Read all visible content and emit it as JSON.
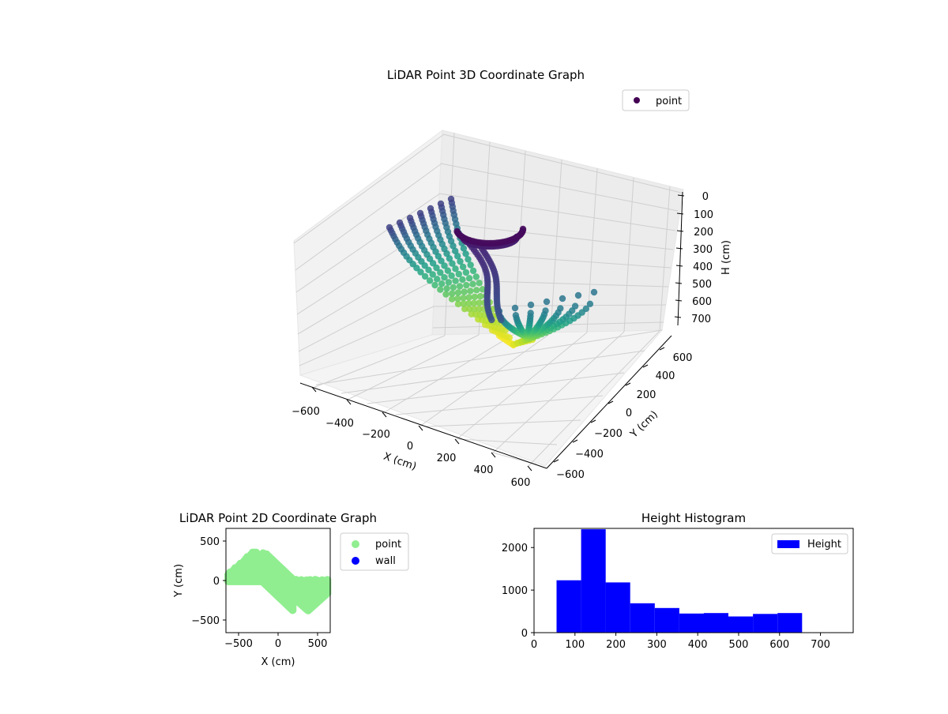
{
  "figure": {
    "background": "#ffffff"
  },
  "chart_data": [
    {
      "type": "scatter",
      "projection": "3d",
      "title": "LiDAR Point 3D Coordinate Graph",
      "xlabel": "X (cm)",
      "ylabel": "Y (cm)",
      "zlabel": "H (cm)",
      "xlim": [
        -650,
        650
      ],
      "ylim": [
        -650,
        650
      ],
      "zlim": [
        0,
        760
      ],
      "z_inverted": true,
      "xticks": [
        "−600",
        "−400",
        "−200",
        "0",
        "200",
        "400",
        "600"
      ],
      "yticks": [
        "−600",
        "−400",
        "−200",
        "0",
        "200",
        "400",
        "600"
      ],
      "zticks": [
        "0",
        "100",
        "200",
        "300",
        "400",
        "500",
        "600",
        "700"
      ],
      "colormap": "viridis",
      "grid": true,
      "legend": {
        "location": "upper-right",
        "entries": [
          {
            "label": "point",
            "color": "#440154"
          }
        ]
      }
    },
    {
      "type": "scatter",
      "title": "LiDAR Point 2D Coordinate Graph",
      "xlabel": "X (cm)",
      "ylabel": "Y (cm)",
      "xlim": [
        -660,
        660
      ],
      "ylim": [
        -660,
        660
      ],
      "xticks": [
        "−500",
        "0",
        "500"
      ],
      "yticks": [
        "−500",
        "0",
        "500"
      ],
      "series": [
        {
          "name": "point",
          "color": "#90ee90"
        },
        {
          "name": "wall",
          "color": "#0000ff"
        }
      ],
      "legend": {
        "location": "outside-upper-right"
      }
    },
    {
      "type": "bar",
      "title": "Height Histogram",
      "xlim": [
        0,
        780
      ],
      "ylim": [
        0,
        2450
      ],
      "xticks": [
        "0",
        "100",
        "200",
        "300",
        "400",
        "500",
        "600",
        "700"
      ],
      "yticks": [
        "0",
        "1000",
        "2000"
      ],
      "bins": [
        {
          "x0": 55,
          "x1": 115,
          "count": 1230
        },
        {
          "x0": 115,
          "x1": 175,
          "count": 2430
        },
        {
          "x0": 175,
          "x1": 235,
          "count": 1180
        },
        {
          "x0": 235,
          "x1": 295,
          "count": 690
        },
        {
          "x0": 295,
          "x1": 355,
          "count": 580
        },
        {
          "x0": 355,
          "x1": 415,
          "count": 450
        },
        {
          "x0": 415,
          "x1": 475,
          "count": 460
        },
        {
          "x0": 475,
          "x1": 535,
          "count": 380
        },
        {
          "x0": 535,
          "x1": 595,
          "count": 440
        },
        {
          "x0": 595,
          "x1": 655,
          "count": 460
        }
      ],
      "bar_color": "#0000ff",
      "legend": {
        "location": "upper-right",
        "entries": [
          {
            "label": "Height",
            "color": "#0000ff"
          }
        ]
      }
    }
  ]
}
